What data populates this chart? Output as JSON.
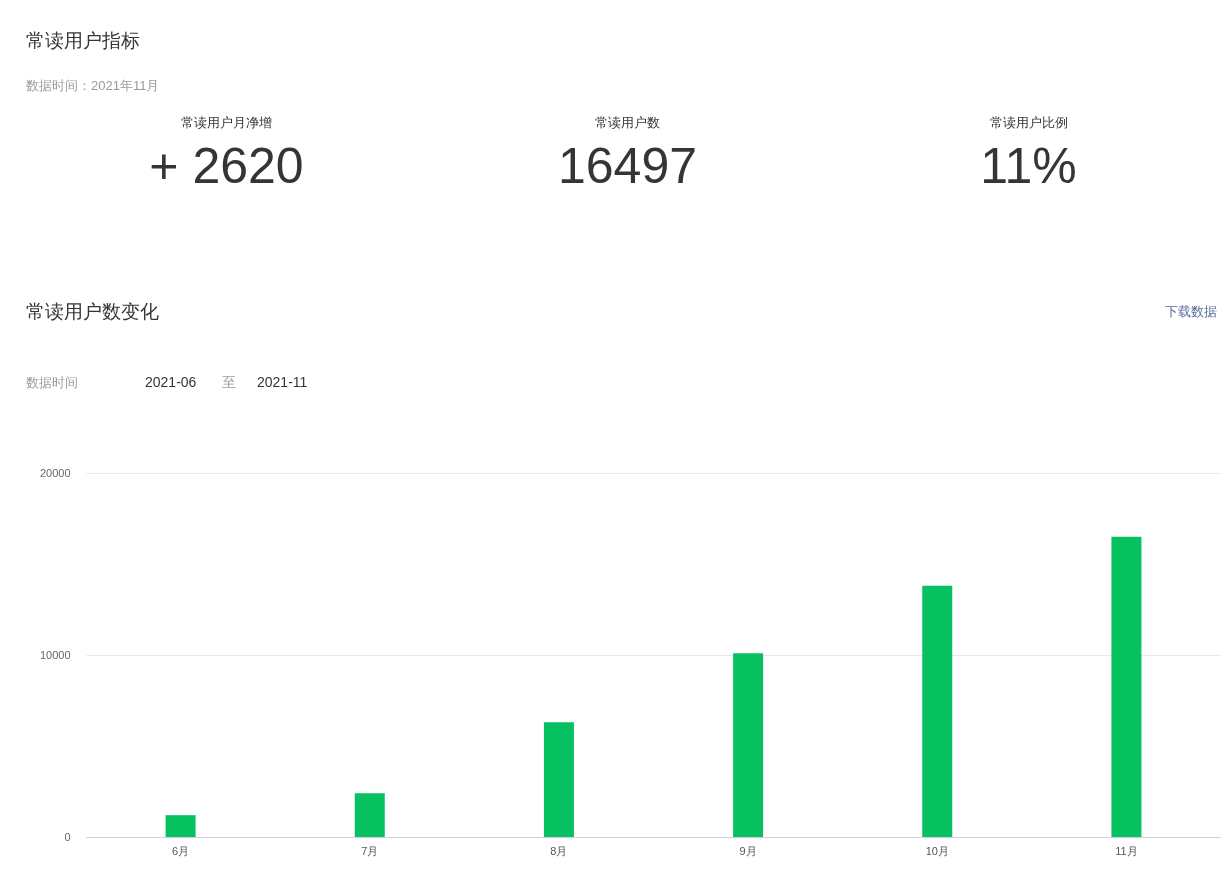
{
  "chart_data": [
    {
      "type": "other",
      "title": "常读用户指标",
      "subtitle": "数据时间：2021年11月",
      "annotations": [
        "常读用户月净增",
        "+ 2620",
        "常读用户数",
        "16497",
        "常读用户比例",
        "11%"
      ]
    },
    {
      "type": "bar",
      "title": "常读用户数变化",
      "annotations": [
        "下载数据",
        "数据时间",
        "2021-06",
        "至",
        "2021-11"
      ],
      "categories": [
        "6月",
        "7月",
        "8月",
        "9月",
        "10月",
        "11月"
      ],
      "values": [
        1200,
        2400,
        6300,
        10100,
        13800,
        16500
      ],
      "color": "#07c160",
      "ylim": [
        0,
        20000
      ],
      "yticks": [
        0,
        10000,
        20000
      ],
      "grid": "y"
    }
  ]
}
